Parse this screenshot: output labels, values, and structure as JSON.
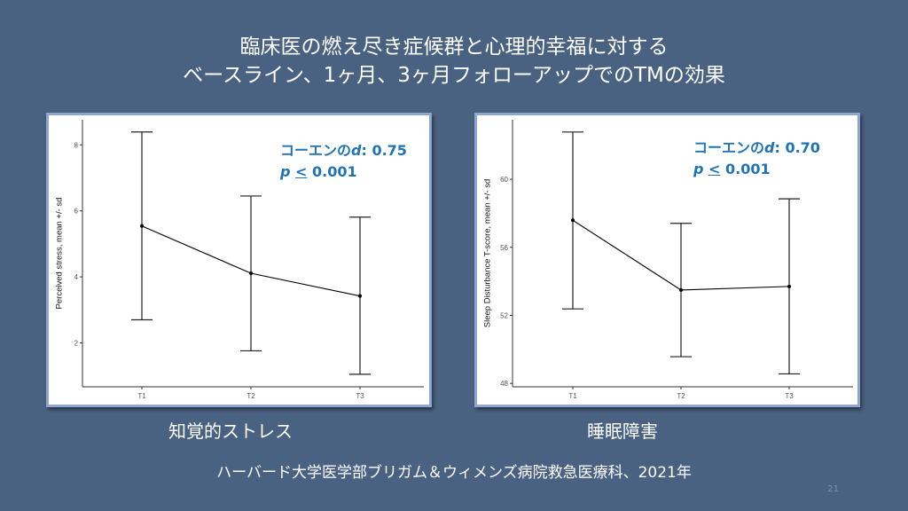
{
  "header": {
    "title_line1": "臨床医の燃え尽き症候群と心理的幸福に対する",
    "title_line2": "ベースライン、1ヶ月、3ヶ月フォローアップでのTMの効果"
  },
  "chart_data": [
    {
      "type": "line",
      "caption": "知覚的ストレス",
      "categories": [
        "T1",
        "T2",
        "T3"
      ],
      "mean": [
        5.54,
        4.11,
        3.42
      ],
      "upper": [
        8.39,
        6.45,
        5.81
      ],
      "lower": [
        2.7,
        1.76,
        1.05
      ],
      "ylabel": "Perceived stress, mean +/- sd",
      "yticks": [
        "2",
        "4",
        "6",
        "8"
      ],
      "ylim": [
        0.67,
        8.76
      ],
      "grid": false,
      "annotation": {
        "effect_prefix": "コーエンの",
        "d_symbol": "d",
        "effect_value": ": 0.75",
        "p_symbol": "p",
        "p_op": "<",
        "p_value": " 0.001"
      },
      "line_color": "#000000"
    },
    {
      "type": "line",
      "caption": "睡眠障害",
      "categories": [
        "T1",
        "T2",
        "T3"
      ],
      "mean": [
        57.59,
        53.49,
        53.7
      ],
      "upper": [
        62.78,
        57.41,
        58.85
      ],
      "lower": [
        52.38,
        49.57,
        48.56
      ],
      "ylabel": "Sleep Disturbance T-score, mean +/- sd",
      "yticks": [
        "48",
        "52",
        "56",
        "60"
      ],
      "ylim": [
        47.8,
        63.5
      ],
      "grid": false,
      "annotation": {
        "effect_prefix": "コーエンの",
        "d_symbol": "d",
        "effect_value": ": 0.70",
        "p_symbol": "p",
        "p_op": "<",
        "p_value": " 0.001"
      },
      "line_color": "#000000"
    }
  ],
  "footer": {
    "source": "ハーバード大学医学部ブリガム＆ウィメンズ病院救急医療科、2021年",
    "page_number": "21"
  },
  "colors": {
    "background": "#4a6281",
    "annotation": "#1f73b7",
    "panel_border": "#8fa6d3"
  }
}
